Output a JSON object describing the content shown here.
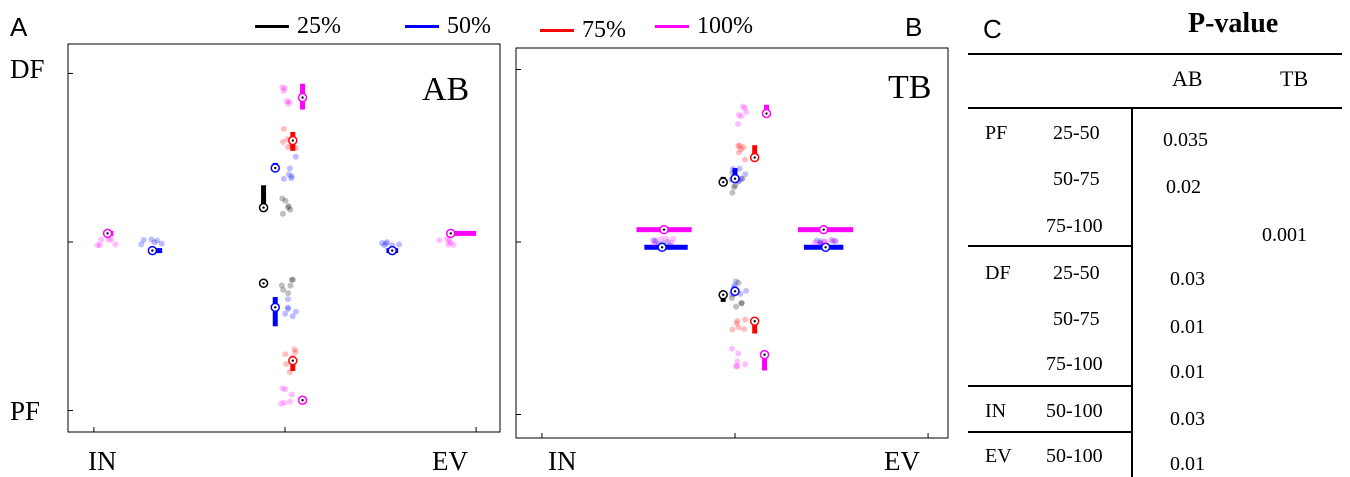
{
  "panels": {
    "A": "A",
    "B": "B",
    "C": "C"
  },
  "legend": [
    {
      "label": "25%",
      "color": "#000000"
    },
    {
      "label": "50%",
      "color": "#0000ff"
    },
    {
      "label": "75%",
      "color": "#ff0000"
    },
    {
      "label": "100%",
      "color": "#ff00ff"
    }
  ],
  "chart_data": [
    {
      "type": "scatter",
      "panel": "A",
      "title": "AB",
      "axes": {
        "top": "DF",
        "bottom": "PF",
        "left": "IN",
        "right": "EV"
      },
      "xlim": [
        -1,
        1
      ],
      "ylim": [
        -1,
        1
      ],
      "grid": false,
      "legend_placement": "top",
      "markers": [
        {
          "pct": "25%",
          "dir": "DF",
          "x": -0.11,
          "y": 0.2,
          "dx": [
            0,
            0
          ],
          "dy": [
            0.2,
            0.33
          ]
        },
        {
          "pct": "50%",
          "dir": "DF",
          "x": -0.05,
          "y": 0.43,
          "dx": [
            -0.01,
            0.01
          ],
          "dy": [
            0.42,
            0.46
          ]
        },
        {
          "pct": "75%",
          "dir": "DF",
          "x": 0.04,
          "y": 0.59,
          "dx": [
            0,
            0
          ],
          "dy": [
            0.53,
            0.64
          ]
        },
        {
          "pct": "100%",
          "dir": "DF",
          "x": 0.09,
          "y": 0.84,
          "dx": [
            0,
            0
          ],
          "dy": [
            0.77,
            0.92
          ]
        },
        {
          "pct": "25%",
          "dir": "PF",
          "x": -0.11,
          "y": -0.24,
          "dx": [
            -0.12,
            -0.1
          ],
          "dy": [
            -0.24,
            -0.24
          ]
        },
        {
          "pct": "50%",
          "dir": "PF",
          "x": -0.05,
          "y": -0.38,
          "dx": [
            0,
            0
          ],
          "dy": [
            -0.49,
            -0.32
          ]
        },
        {
          "pct": "75%",
          "dir": "PF",
          "x": 0.04,
          "y": -0.69,
          "dx": [
            0,
            0
          ],
          "dy": [
            -0.75,
            -0.68
          ]
        },
        {
          "pct": "100%",
          "dir": "PF",
          "x": 0.09,
          "y": -0.92,
          "dx": [
            0,
            0
          ],
          "dy": [
            -0.91,
            -0.91
          ]
        },
        {
          "pct": "50%",
          "dir": "IN",
          "x": -0.68,
          "y": -0.05,
          "dx": [
            -0.68,
            -0.63
          ],
          "dy": [
            0,
            0
          ]
        },
        {
          "pct": "100%",
          "dir": "IN",
          "x": -0.91,
          "y": 0.05,
          "dx": [
            -0.92,
            -0.88
          ],
          "dy": [
            0,
            0
          ]
        },
        {
          "pct": "50%",
          "dir": "EV",
          "x": 0.55,
          "y": -0.05,
          "dx": [
            0.52,
            0.58
          ],
          "dy": [
            0,
            0
          ]
        },
        {
          "pct": "100%",
          "dir": "EV",
          "x": 0.85,
          "y": 0.05,
          "dx": [
            0.83,
            0.98
          ],
          "dy": [
            0,
            0
          ]
        }
      ]
    },
    {
      "type": "scatter",
      "panel": "B",
      "title": "TB",
      "axes": {
        "top": "",
        "bottom": "",
        "left": "IN",
        "right": "EV"
      },
      "xlim": [
        -1,
        1
      ],
      "ylim": [
        -1,
        1
      ],
      "grid": false,
      "markers": [
        {
          "pct": "25%",
          "dir": "DF",
          "x": -0.06,
          "y": 0.34,
          "dx": [
            0,
            0
          ],
          "dy": [
            0.32,
            0.37
          ]
        },
        {
          "pct": "50%",
          "dir": "DF",
          "x": 0.0,
          "y": 0.36,
          "dx": [
            0,
            0
          ],
          "dy": [
            0.35,
            0.42
          ]
        },
        {
          "pct": "75%",
          "dir": "DF",
          "x": 0.1,
          "y": 0.48,
          "dx": [
            0,
            0
          ],
          "dy": [
            0.48,
            0.55
          ]
        },
        {
          "pct": "100%",
          "dir": "DF",
          "x": 0.16,
          "y": 0.73,
          "dx": [
            0,
            0
          ],
          "dy": [
            0.72,
            0.78
          ]
        },
        {
          "pct": "25%",
          "dir": "PF",
          "x": -0.06,
          "y": -0.3,
          "dx": [
            0,
            0
          ],
          "dy": [
            -0.34,
            -0.28
          ]
        },
        {
          "pct": "50%",
          "dir": "PF",
          "x": 0.0,
          "y": -0.28,
          "dx": [
            0,
            0
          ],
          "dy": [
            -0.3,
            -0.26
          ]
        },
        {
          "pct": "75%",
          "dir": "PF",
          "x": 0.1,
          "y": -0.45,
          "dx": [
            0,
            0
          ],
          "dy": [
            -0.52,
            -0.43
          ]
        },
        {
          "pct": "100%",
          "dir": "PF",
          "x": 0.15,
          "y": -0.64,
          "dx": [
            0,
            0
          ],
          "dy": [
            -0.73,
            -0.62
          ]
        },
        {
          "pct": "50%",
          "dir": "IN",
          "x": -0.37,
          "y": -0.03,
          "dx": [
            -0.46,
            -0.24
          ],
          "dy": [
            0,
            0
          ]
        },
        {
          "pct": "100%",
          "dir": "IN",
          "x": -0.36,
          "y": 0.07,
          "dx": [
            -0.5,
            -0.22
          ],
          "dy": [
            0,
            0
          ]
        },
        {
          "pct": "50%",
          "dir": "EV",
          "x": 0.46,
          "y": -0.03,
          "dx": [
            0.35,
            0.55
          ],
          "dy": [
            0,
            0
          ]
        },
        {
          "pct": "100%",
          "dir": "EV",
          "x": 0.45,
          "y": 0.07,
          "dx": [
            0.32,
            0.6
          ],
          "dy": [
            0,
            0
          ]
        }
      ]
    },
    {
      "type": "table",
      "panel": "C",
      "title": "P-value",
      "columns": [
        "",
        "",
        "AB",
        "TB"
      ],
      "rows": [
        {
          "group": "PF",
          "range": "25-50",
          "AB": "0.035",
          "TB": ""
        },
        {
          "group": "",
          "range": "50-75",
          "AB": "0.02",
          "TB": ""
        },
        {
          "group": "",
          "range": "75-100",
          "AB": "",
          "TB": "0.001"
        },
        {
          "group": "DF",
          "range": "25-50",
          "AB": "0.03",
          "TB": ""
        },
        {
          "group": "",
          "range": "50-75",
          "AB": "0.01",
          "TB": ""
        },
        {
          "group": "",
          "range": "75-100",
          "AB": "0.01",
          "TB": ""
        },
        {
          "group": "IN",
          "range": "50-100",
          "AB": "0.03",
          "TB": ""
        },
        {
          "group": "EV",
          "range": "50-100",
          "AB": "0.01",
          "TB": ""
        }
      ]
    }
  ]
}
